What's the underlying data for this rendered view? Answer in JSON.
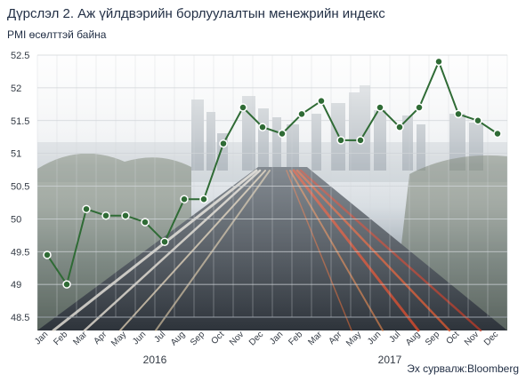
{
  "title": "Дүрслэл 2. Аж үйлдвэрийн борлуулалтын менежрийн индекс",
  "subtitle": "PMI өсөлттэй байна",
  "source": "Эх сурвалж:Bloomberg",
  "colors": {
    "line": "#2f6b35",
    "marker": "#2f6b35",
    "marker_stroke": "#ffffff",
    "grid": "#d0d4d8"
  },
  "chart_data": {
    "type": "line",
    "title": "",
    "xlabel": "",
    "ylabel": "PMI өсөлттэй байна",
    "ylim": [
      48.5,
      52.5
    ],
    "yticks": [
      "48.5",
      "49",
      "49.5",
      "50",
      "50.5",
      "51",
      "51.5",
      "52",
      "52.5"
    ],
    "categories": [
      "Jan",
      "Feb",
      "Mar",
      "Apr",
      "May",
      "Jun",
      "Jul",
      "Aug",
      "Sep",
      "Oct",
      "Nov",
      "Dec",
      "Jan",
      "Feb",
      "Mar",
      "Apr",
      "May",
      "Jun",
      "Jul",
      "Aug",
      "Sep",
      "Oct",
      "Nov",
      "Dec"
    ],
    "year_labels": [
      {
        "label": "2016",
        "start_index": 0,
        "end_index": 11
      },
      {
        "label": "2017",
        "start_index": 12,
        "end_index": 23
      }
    ],
    "series": [
      {
        "values": [
          49.45,
          49.0,
          50.15,
          50.05,
          50.05,
          49.95,
          49.65,
          50.3,
          50.3,
          51.15,
          51.7,
          51.4,
          51.3,
          51.6,
          51.8,
          51.2,
          51.2,
          51.7,
          51.4,
          51.7,
          52.4,
          51.6,
          51.5,
          51.3
        ]
      }
    ],
    "grid": true,
    "background": "photo of city skyline and highway light trails"
  }
}
